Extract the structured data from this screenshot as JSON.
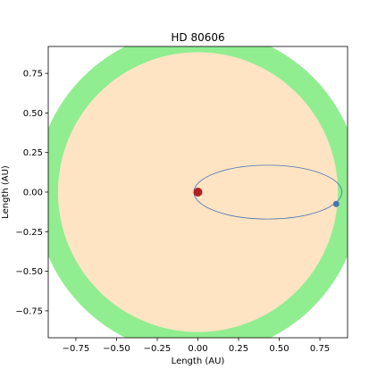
{
  "chart_data": {
    "type": "scatter",
    "title": "HD 80606",
    "xlabel": "Length (AU)",
    "ylabel": "Length (AU)",
    "xlim": [
      -0.92,
      0.92
    ],
    "ylim": [
      -0.92,
      0.92
    ],
    "xticks": [
      -0.75,
      -0.5,
      -0.25,
      0.0,
      0.25,
      0.5,
      0.75
    ],
    "yticks": [
      -0.75,
      -0.5,
      -0.25,
      0.0,
      0.25,
      0.5,
      0.75
    ],
    "xtick_labels": [
      "−0.75",
      "−0.50",
      "−0.25",
      "0.00",
      "0.25",
      "0.50",
      "0.75"
    ],
    "ytick_labels": [
      "−0.75",
      "−0.50",
      "−0.25",
      "0.00",
      "0.25",
      "0.50",
      "0.75"
    ],
    "grid": false,
    "zones": [
      {
        "type": "circle",
        "center": [
          0,
          0
        ],
        "radius": 1.0,
        "color": "#90ee90"
      },
      {
        "type": "circle",
        "center": [
          0,
          0
        ],
        "radius": 0.86,
        "color": "#ffe4c4"
      }
    ],
    "star": {
      "x": 0.0,
      "y": 0.0,
      "color": "#b22222"
    },
    "orbit": {
      "center": [
        0.43,
        0.0
      ],
      "semi_major": 0.455,
      "semi_minor": 0.17,
      "color": "#4c72b0"
    },
    "planet": {
      "x": 0.85,
      "y": -0.075,
      "color": "#4c72b0"
    }
  }
}
